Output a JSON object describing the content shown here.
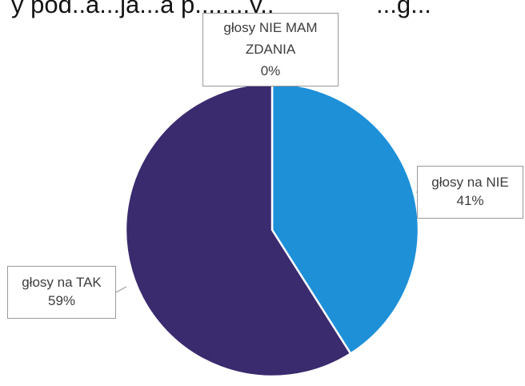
{
  "header": {
    "text_left": "y pod..a...ja...a  p........y..",
    "text_right": "...g..."
  },
  "chart_data": {
    "type": "pie",
    "title": "",
    "start_angle_deg": 0,
    "direction": "clockwise",
    "slices": [
      {
        "label_line1": "głosy NIE MAM",
        "label_line2": "ZDANIA",
        "category": "głosy NIE MAM ZDANIA",
        "value": 0,
        "value_label": "0%",
        "color": "#6f8fcc"
      },
      {
        "label_line1": "głosy na NIE",
        "label_line2": "",
        "category": "głosy na NIE",
        "value": 41,
        "value_label": "41%",
        "color": "#1e90d8"
      },
      {
        "label_line1": "głosy na TAK",
        "label_line2": "",
        "category": "głosy na TAK",
        "value": 59,
        "value_label": "59%",
        "color": "#3a2a6e"
      }
    ],
    "legend": "none",
    "slice_border_color": "#ffffff"
  }
}
